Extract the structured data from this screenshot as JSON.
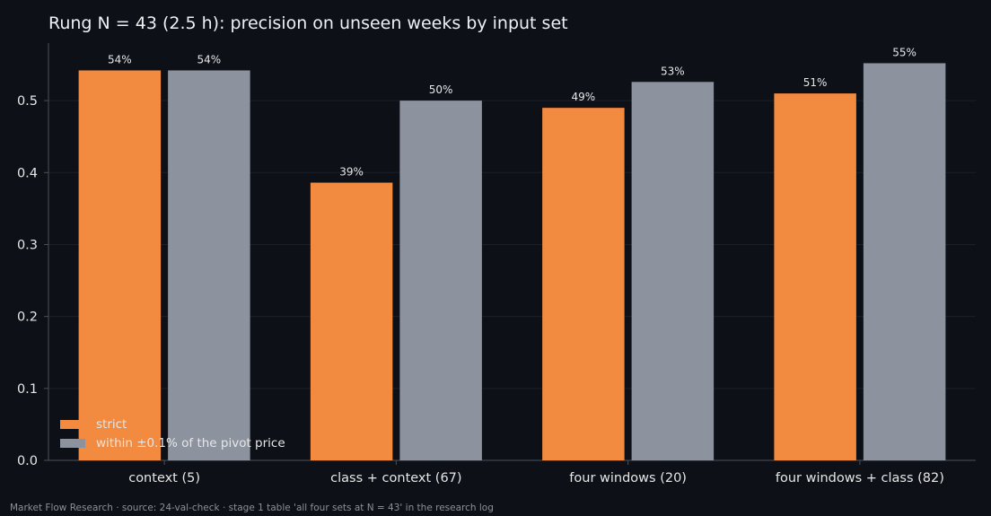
{
  "title": "Rung N = 43 (2.5 h): precision on unseen weeks by input set",
  "footer": "Market Flow Research · source: 24-val-check · stage 1 table 'all four sets at N = 43' in the research log",
  "colors": {
    "background": "#0d1017",
    "strict": "#f28a3f",
    "within": "#8d939e",
    "axis": "#4a4f59",
    "grid": "#1b1f28",
    "text": "#e6e6e6"
  },
  "chart_data": {
    "type": "bar",
    "title": "Rung N = 43 (2.5 h): precision on unseen weeks by input set",
    "xlabel": "",
    "ylabel": "",
    "categories": [
      "context (5)",
      "class + context (67)",
      "four windows (20)",
      "four windows + class (82)"
    ],
    "series": [
      {
        "name": "strict",
        "values": [
          0.542,
          0.386,
          0.49,
          0.51
        ],
        "labels": [
          "54%",
          "39%",
          "49%",
          "51%"
        ],
        "color": "#f28a3f"
      },
      {
        "name": "within ±0.1% of the pivot price",
        "values": [
          0.542,
          0.5,
          0.526,
          0.552
        ],
        "labels": [
          "54%",
          "50%",
          "53%",
          "55%"
        ],
        "color": "#8d939e"
      }
    ],
    "ylim": [
      0,
      0.58
    ],
    "yticks": [
      "0.0",
      "0.1",
      "0.2",
      "0.3",
      "0.4",
      "0.5"
    ],
    "grid": true,
    "legend": "bottom-left"
  }
}
